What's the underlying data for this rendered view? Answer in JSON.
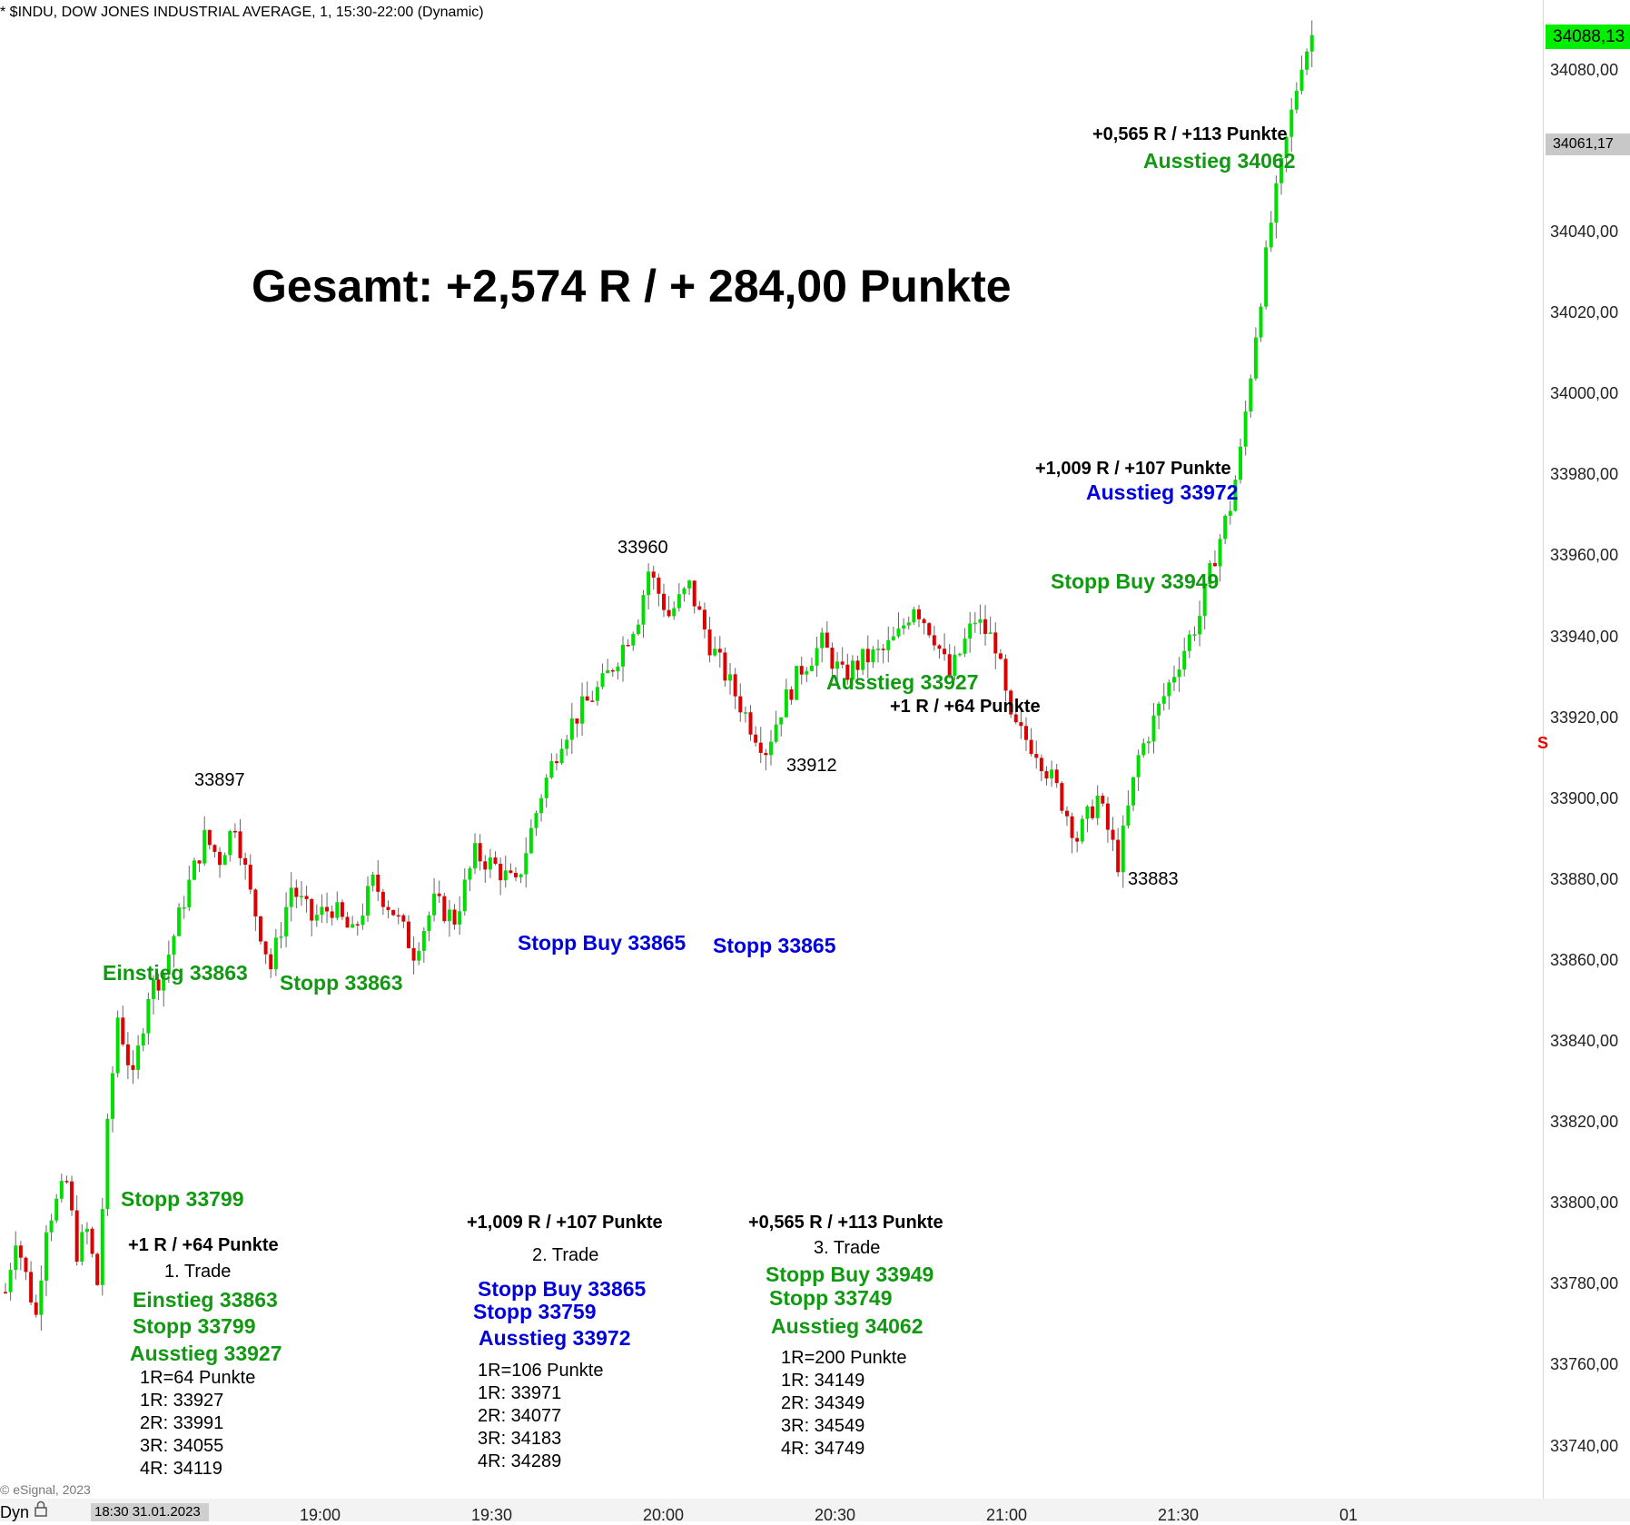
{
  "header": {
    "title": "* $INDU, DOW JONES INDUSTRIAL AVERAGE, 1, 15:30-22:00 (Dynamic)"
  },
  "footer": {
    "copyright": "© eSignal, 2023",
    "dyn": "Dyn",
    "date_box": "18:30 31.01.2023"
  },
  "price_tags": {
    "last": "34088,13",
    "marker": "34061,17"
  },
  "colors": {
    "up": "#00dd00",
    "down": "#dd0000",
    "green_text": "#119911",
    "blue_text": "#0000dd"
  },
  "chart_data": {
    "type": "candlestick",
    "title": "Gesamt: +2,574 R / + 284,00 Punkte",
    "xlabel": "",
    "ylabel": "",
    "ylim": [
      33723,
      34095
    ],
    "x_ticks": [
      "19:00",
      "19:30",
      "20:00",
      "20:30",
      "21:00",
      "21:30",
      "01"
    ],
    "y_ticks": [
      "34080,00",
      "34040,00",
      "34020,00",
      "34000,00",
      "33980,00",
      "33960,00",
      "33940,00",
      "33920,00",
      "33900,00",
      "33880,00",
      "33860,00",
      "33840,00",
      "33820,00",
      "33800,00",
      "33780,00",
      "33760,00",
      "33740,00"
    ],
    "anchors": [
      [
        0,
        33778
      ],
      [
        2,
        33792
      ],
      [
        6,
        33772
      ],
      [
        8,
        33795
      ],
      [
        12,
        33805
      ],
      [
        14,
        33788
      ],
      [
        16,
        33793
      ],
      [
        18,
        33780
      ],
      [
        20,
        33818
      ],
      [
        22,
        33846
      ],
      [
        25,
        33830
      ],
      [
        28,
        33852
      ],
      [
        31,
        33857
      ],
      [
        35,
        33875
      ],
      [
        39,
        33890
      ],
      [
        42,
        33885
      ],
      [
        45,
        33894
      ],
      [
        48,
        33876
      ],
      [
        52,
        33858
      ],
      [
        56,
        33878
      ],
      [
        60,
        33870
      ],
      [
        64,
        33873
      ],
      [
        68,
        33866
      ],
      [
        72,
        33879
      ],
      [
        76,
        33872
      ],
      [
        80,
        33862
      ],
      [
        84,
        33874
      ],
      [
        88,
        33870
      ],
      [
        92,
        33886
      ],
      [
        96,
        33883
      ],
      [
        100,
        33878
      ],
      [
        105,
        33901
      ],
      [
        109,
        33915
      ],
      [
        113,
        33922
      ],
      [
        117,
        33928
      ],
      [
        120,
        33935
      ],
      [
        124,
        33945
      ],
      [
        126,
        33956
      ],
      [
        130,
        33945
      ],
      [
        134,
        33952
      ],
      [
        138,
        33938
      ],
      [
        142,
        33928
      ],
      [
        146,
        33918
      ],
      [
        149,
        33912
      ],
      [
        152,
        33922
      ],
      [
        156,
        33932
      ],
      [
        160,
        33938
      ],
      [
        164,
        33930
      ],
      [
        168,
        33934
      ],
      [
        172,
        33936
      ],
      [
        175,
        33940
      ],
      [
        178,
        33948
      ],
      [
        182,
        33940
      ],
      [
        185,
        33930
      ],
      [
        190,
        33944
      ],
      [
        194,
        33938
      ],
      [
        197,
        33918
      ],
      [
        202,
        33912
      ],
      [
        206,
        33902
      ],
      [
        210,
        33890
      ],
      [
        214,
        33900
      ],
      [
        218,
        33884
      ],
      [
        222,
        33910
      ],
      [
        226,
        33922
      ],
      [
        230,
        33934
      ],
      [
        234,
        33945
      ],
      [
        237,
        33960
      ],
      [
        240,
        33972
      ],
      [
        242,
        33985
      ],
      [
        245,
        34015
      ],
      [
        248,
        34042
      ],
      [
        251,
        34062
      ],
      [
        254,
        34082
      ],
      [
        256,
        34088
      ]
    ],
    "n_candles": 257,
    "swing_labels": [
      "33897",
      "33960",
      "33912",
      "33883"
    ],
    "annotations": {
      "einstieg": "Einstieg 33863",
      "stopp_33863": "Stopp 33863",
      "stopp_buy_mid": "Stopp Buy 33865",
      "stopp_mid": "Stopp 33865",
      "ausstieg_1": "Ausstieg 33927",
      "r1_chart": "+1 R / +64 Punkte",
      "stopp_buy_right": "Stopp Buy 33949",
      "r2_chart": "+1,009 R / +107 Punkte",
      "ausstieg_2": "Ausstieg 33972",
      "r3_chart": "+0,565 R / +113 Punkte",
      "ausstieg_3": "Ausstieg 34062",
      "stopp_33799": "Stopp 33799"
    },
    "trades": [
      {
        "result": "+1 R / +64 Punkte",
        "name": "1. Trade",
        "entry": "Einstieg 33863",
        "stop": "Stopp 33799",
        "exit": "Ausstieg 33927",
        "levels": [
          "1R=64 Punkte",
          "1R: 33927",
          "2R: 33991",
          "3R: 34055",
          "4R: 34119"
        ]
      },
      {
        "result": "+1,009 R / +107 Punkte",
        "name": "2. Trade",
        "entry": "Stopp Buy 33865",
        "stop": "Stopp 33759",
        "exit": "Ausstieg 33972",
        "levels": [
          "1R=106 Punkte",
          "1R: 33971",
          "2R: 34077",
          "3R: 34183",
          "4R: 34289"
        ]
      },
      {
        "result": "+0,565 R / +113 Punkte",
        "name": "3. Trade",
        "entry": "Stopp Buy 33949",
        "stop": "Stopp 33749",
        "exit": "Ausstieg 34062",
        "levels": [
          "1R=200 Punkte",
          "1R: 34149",
          "2R: 34349",
          "3R: 34549",
          "4R: 34749"
        ]
      }
    ]
  }
}
